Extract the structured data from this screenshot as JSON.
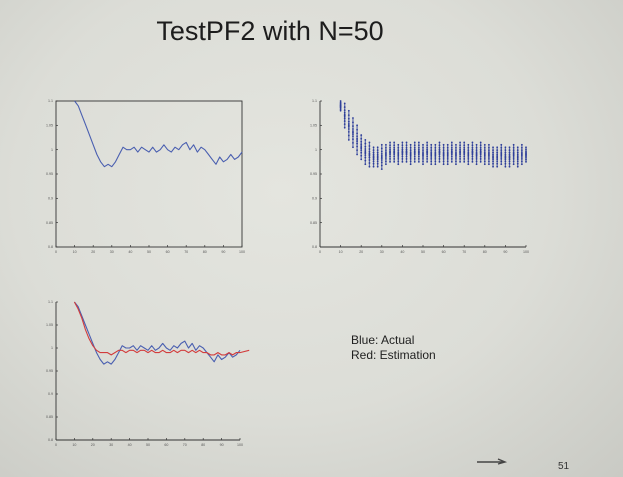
{
  "slide": {
    "title": "TestPF2 with N=50",
    "legend": {
      "blue_label": "Blue: Actual",
      "red_label": "Red: Estimation"
    },
    "page_number": "51"
  },
  "colors": {
    "actual": "#4a5fb0",
    "estimation": "#d23c3c",
    "particles": "#2e3f9a",
    "axis": "#333333"
  },
  "chart_data": [
    {
      "type": "line",
      "xlim": [
        0,
        100
      ],
      "ylim": [
        0.8,
        1.1
      ],
      "xticks": [
        0,
        10,
        20,
        30,
        40,
        50,
        60,
        70,
        80,
        90,
        100
      ],
      "yticks": [
        0.8,
        0.85,
        0.9,
        0.95,
        1,
        1.05,
        1.1
      ],
      "series": [
        {
          "x": [
            10,
            12,
            14,
            16,
            18,
            20,
            22,
            24,
            26,
            28,
            30,
            32,
            34,
            36,
            38,
            40,
            42,
            44,
            46,
            48,
            50,
            52,
            54,
            56,
            58,
            60,
            62,
            64,
            66,
            68,
            70,
            72,
            74,
            76,
            78,
            80,
            82,
            84,
            86,
            88,
            90,
            92,
            94,
            96,
            98,
            100
          ],
          "y": [
            1.1,
            1.09,
            1.07,
            1.05,
            1.03,
            1.01,
            0.99,
            0.975,
            0.965,
            0.97,
            0.965,
            0.975,
            0.99,
            1.005,
            1.0,
            1.0,
            1.005,
            0.995,
            1.005,
            1.0,
            0.995,
            1.005,
            0.995,
            1.0,
            1.01,
            1.0,
            0.995,
            1.005,
            1.0,
            1.01,
            1.015,
            1.0,
            1.01,
            0.995,
            1.005,
            1.0,
            0.99,
            0.98,
            0.97,
            0.985,
            0.975,
            0.98,
            0.99,
            0.98,
            0.985,
            0.995
          ]
        }
      ]
    },
    {
      "type": "scatter",
      "xlim": [
        0,
        100
      ],
      "ylim": [
        0.8,
        1.1
      ],
      "xticks": [
        0,
        10,
        20,
        30,
        40,
        50,
        60,
        70,
        80,
        90,
        100
      ],
      "yticks": [
        0.8,
        0.85,
        0.9,
        0.95,
        1,
        1.05,
        1.1
      ],
      "x": [
        10,
        12,
        14,
        16,
        18,
        20,
        22,
        24,
        26,
        28,
        30,
        32,
        34,
        36,
        38,
        40,
        42,
        44,
        46,
        48,
        50,
        52,
        54,
        56,
        58,
        60,
        62,
        64,
        66,
        68,
        70,
        72,
        74,
        76,
        78,
        80,
        82,
        84,
        86,
        88,
        90,
        92,
        94,
        96,
        98,
        100
      ],
      "y_center": [
        1.09,
        1.07,
        1.05,
        1.035,
        1.02,
        1.005,
        0.995,
        0.99,
        0.985,
        0.985,
        0.985,
        0.99,
        0.995,
        0.995,
        0.99,
        0.995,
        0.995,
        0.99,
        0.995,
        0.995,
        0.99,
        0.995,
        0.99,
        0.99,
        0.995,
        0.99,
        0.99,
        0.995,
        0.99,
        0.995,
        0.995,
        0.99,
        0.995,
        0.99,
        0.995,
        0.99,
        0.99,
        0.985,
        0.985,
        0.99,
        0.985,
        0.985,
        0.99,
        0.985,
        0.99,
        0.99
      ],
      "y_spread": [
        0.01,
        0.025,
        0.03,
        0.03,
        0.03,
        0.025,
        0.025,
        0.025,
        0.02,
        0.02,
        0.025,
        0.02,
        0.02,
        0.02,
        0.02,
        0.02,
        0.02,
        0.02,
        0.02,
        0.02,
        0.02,
        0.02,
        0.02,
        0.02,
        0.02,
        0.02,
        0.02,
        0.02,
        0.02,
        0.02,
        0.02,
        0.02,
        0.02,
        0.02,
        0.02,
        0.02,
        0.02,
        0.02,
        0.02,
        0.02,
        0.02,
        0.02,
        0.02,
        0.02,
        0.02,
        0.015
      ]
    },
    {
      "type": "line",
      "xlim": [
        0,
        100
      ],
      "ylim": [
        0.8,
        1.1
      ],
      "xticks": [
        0,
        10,
        20,
        30,
        40,
        50,
        60,
        70,
        80,
        90,
        100
      ],
      "yticks": [
        0.8,
        0.85,
        0.9,
        0.95,
        1,
        1.05,
        1.1
      ],
      "series": [
        {
          "color_key": "actual",
          "x": [
            10,
            12,
            14,
            16,
            18,
            20,
            22,
            24,
            26,
            28,
            30,
            32,
            34,
            36,
            38,
            40,
            42,
            44,
            46,
            48,
            50,
            52,
            54,
            56,
            58,
            60,
            62,
            64,
            66,
            68,
            70,
            72,
            74,
            76,
            78,
            80,
            82,
            84,
            86,
            88,
            90,
            92,
            94,
            96,
            98,
            100
          ],
          "y": [
            1.1,
            1.09,
            1.07,
            1.05,
            1.03,
            1.01,
            0.99,
            0.975,
            0.965,
            0.97,
            0.965,
            0.975,
            0.99,
            1.005,
            1.0,
            1.0,
            1.005,
            0.995,
            1.005,
            1.0,
            0.995,
            1.005,
            0.995,
            1.0,
            1.01,
            1.0,
            0.995,
            1.005,
            1.0,
            1.01,
            1.015,
            1.0,
            1.01,
            0.995,
            1.005,
            1.0,
            0.99,
            0.98,
            0.97,
            0.985,
            0.975,
            0.98,
            0.99,
            0.98,
            0.985,
            0.995
          ]
        },
        {
          "color_key": "estimation",
          "x": [
            10,
            12,
            14,
            16,
            18,
            20,
            22,
            24,
            26,
            28,
            30,
            32,
            34,
            36,
            38,
            40,
            42,
            44,
            46,
            48,
            50,
            52,
            54,
            56,
            58,
            60,
            62,
            64,
            66,
            68,
            70,
            72,
            74,
            76,
            78,
            80,
            82,
            84,
            86,
            88,
            90,
            92,
            94,
            96,
            98,
            100,
            105
          ],
          "y": [
            1.1,
            1.085,
            1.065,
            1.04,
            1.02,
            1.005,
            0.995,
            0.99,
            0.99,
            0.99,
            0.985,
            0.99,
            0.995,
            0.995,
            0.99,
            0.995,
            0.995,
            0.99,
            0.995,
            0.995,
            0.99,
            0.995,
            0.99,
            0.99,
            0.995,
            0.99,
            0.99,
            0.995,
            0.99,
            0.995,
            0.995,
            0.99,
            0.995,
            0.99,
            0.995,
            0.99,
            0.99,
            0.985,
            0.985,
            0.99,
            0.985,
            0.985,
            0.99,
            0.985,
            0.99,
            0.99,
            0.995
          ]
        }
      ]
    }
  ]
}
